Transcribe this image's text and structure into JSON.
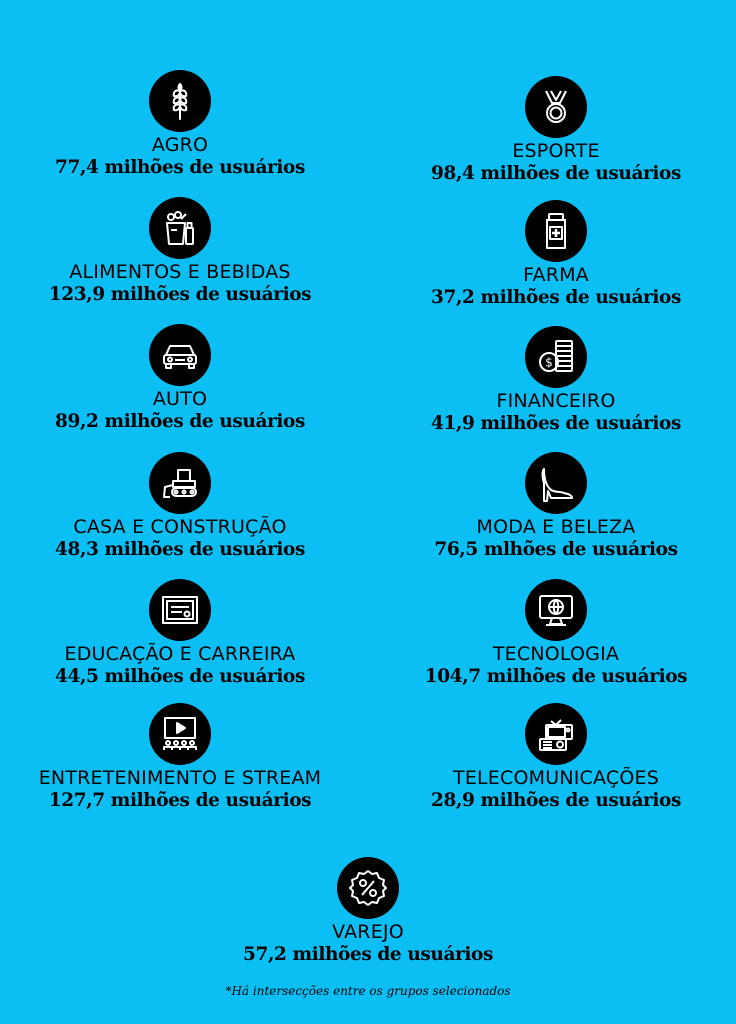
{
  "items": [
    {
      "name": "AGRO",
      "users": "77,4 milhões de usuários",
      "icon": "wheat-icon"
    },
    {
      "name": "ESPORTE",
      "users": "98,4 milhões de usuários",
      "icon": "medal-icon"
    },
    {
      "name": "ALIMENTOS E BEBIDAS",
      "users": "123,9 milhões de usuários",
      "icon": "grocery-bag-icon"
    },
    {
      "name": "FARMA",
      "users": "37,2 milhões de usuários",
      "icon": "medicine-bottle-icon"
    },
    {
      "name": "AUTO",
      "users": "89,2 milhões de usuários",
      "icon": "car-icon"
    },
    {
      "name": "FINANCEIRO",
      "users": "41,9 milhões de usuários",
      "icon": "coins-icon"
    },
    {
      "name": "CASA E CONSTRUÇÃO",
      "users": "48,3 milhões de usuários",
      "icon": "bulldozer-icon"
    },
    {
      "name": "MODA E BELEZA",
      "users": "76,5 mlhões de usuários",
      "icon": "high-heel-icon"
    },
    {
      "name": "EDUCAÇÃO E CARREIRA",
      "users": "44,5 milhões de usuários",
      "icon": "diploma-icon"
    },
    {
      "name": "TECNOLOGIA",
      "users": "104,7 milhões de usuários",
      "icon": "monitor-icon"
    },
    {
      "name": "ENTRETENIMENTO E STREAM",
      "users": "127,7 milhões de usuários",
      "icon": "video-audience-icon"
    },
    {
      "name": "TELECOMUNICAÇÕES",
      "users": "28,9 milhões de usuários",
      "icon": "tv-radio-icon"
    },
    {
      "name": "VAREJO",
      "users": "57,2 milhões de usuários",
      "icon": "percent-badge-icon"
    }
  ],
  "footnote": "*Há intersecções entre os grupos selecionados"
}
